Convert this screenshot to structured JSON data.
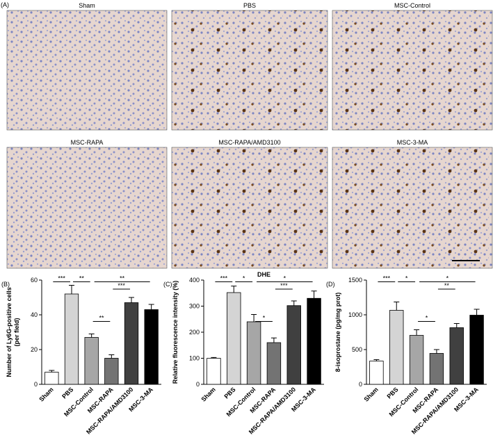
{
  "panel_a": {
    "label": "(A)",
    "images": [
      "Sham",
      "PBS",
      "MSC-Control",
      "MSC-RAPA",
      "MSC-RAPA/AMD3100",
      "MSC-3-MA"
    ]
  },
  "chart_data": [
    {
      "type": "bar",
      "panel_label": "(B)",
      "ylabel": [
        "Number of Ly6G-positive cells",
        "(per field)"
      ],
      "categories": [
        "Sham",
        "PBS",
        "MSC-Control",
        "MSC-RAPA",
        "MSC-RAPA/AMD3100",
        "MSC-3-MA"
      ],
      "values": [
        7,
        52,
        27,
        15,
        47,
        43
      ],
      "errors": [
        1,
        5,
        2,
        2,
        3,
        3
      ],
      "colors": [
        "#ffffff",
        "#d4d4d4",
        "#a6a6a6",
        "#737373",
        "#404040",
        "#000000"
      ],
      "ylim": [
        0,
        60
      ],
      "yticks": [
        0,
        20,
        40,
        60
      ],
      "annotations": [
        {
          "pair": [
            0,
            1
          ],
          "label": "***"
        },
        {
          "pair": [
            1,
            2
          ],
          "label": "**"
        },
        {
          "pair": [
            2,
            5
          ],
          "label": "**"
        },
        {
          "pair": [
            2,
            3
          ],
          "label": "**"
        },
        {
          "pair": [
            3,
            4
          ],
          "label": "***"
        }
      ]
    },
    {
      "type": "bar",
      "panel_label": "(C)",
      "title": "DHE",
      "ylabel": [
        "Relative fluorescence intensity (%)"
      ],
      "categories": [
        "Sham",
        "PBS",
        "MSC-Control",
        "MSC-RAPA",
        "MSC-RAPA/AMD3100",
        "MSC-3-MA"
      ],
      "values": [
        100,
        352,
        240,
        160,
        302,
        330
      ],
      "errors": [
        3,
        25,
        28,
        18,
        18,
        28
      ],
      "colors": [
        "#ffffff",
        "#d4d4d4",
        "#a6a6a6",
        "#737373",
        "#404040",
        "#000000"
      ],
      "ylim": [
        0,
        400
      ],
      "yticks": [
        0,
        100,
        200,
        300,
        400
      ],
      "annotations": [
        {
          "pair": [
            0,
            1
          ],
          "label": "***"
        },
        {
          "pair": [
            1,
            2
          ],
          "label": "*"
        },
        {
          "pair": [
            2,
            5
          ],
          "label": "*"
        },
        {
          "pair": [
            2,
            3
          ],
          "label": "*"
        },
        {
          "pair": [
            3,
            4
          ],
          "label": "***"
        }
      ]
    },
    {
      "type": "bar",
      "panel_label": "(D)",
      "ylabel": [
        "8-isoprostane (pg/mg prot)"
      ],
      "categories": [
        "Sham",
        "PBS",
        "MSC-Control",
        "MSC-RAPA",
        "MSC-RAPA/AMD3100",
        "MSC-3-MA"
      ],
      "values": [
        335,
        1065,
        705,
        445,
        815,
        995
      ],
      "errors": [
        20,
        120,
        80,
        55,
        60,
        85
      ],
      "colors": [
        "#ffffff",
        "#d4d4d4",
        "#a6a6a6",
        "#737373",
        "#404040",
        "#000000"
      ],
      "ylim": [
        0,
        1500
      ],
      "yticks": [
        0,
        500,
        1000,
        1500
      ],
      "annotations": [
        {
          "pair": [
            0,
            1
          ],
          "label": "***"
        },
        {
          "pair": [
            1,
            2
          ],
          "label": "*"
        },
        {
          "pair": [
            2,
            5
          ],
          "label": "*"
        },
        {
          "pair": [
            2,
            3
          ],
          "label": "*"
        },
        {
          "pair": [
            3,
            4
          ],
          "label": "**"
        }
      ]
    }
  ]
}
